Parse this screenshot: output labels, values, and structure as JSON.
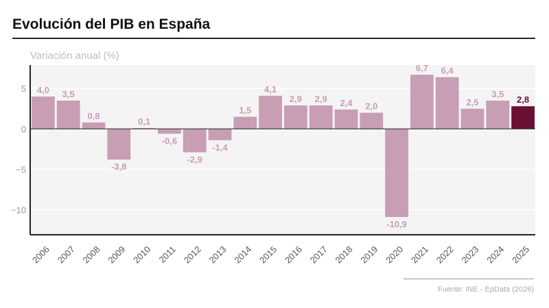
{
  "title": "Evolución del PIB en España",
  "source": "Fuente: INE - EpData (2026)",
  "colors": {
    "bar": "#c89eb4",
    "highlight": "#6b0f35",
    "label": "#c89eb4",
    "background": "#f4f4f4"
  },
  "chart_data": {
    "type": "bar",
    "title": "Evolución del PIB en España",
    "ylabel": "Variación anual (%)",
    "xlabel": "",
    "categories": [
      "2006",
      "2007",
      "2008",
      "2009",
      "2010",
      "2011",
      "2012",
      "2013",
      "2014",
      "2015",
      "2016",
      "2017",
      "2018",
      "2019",
      "2020",
      "2021",
      "2022",
      "2023",
      "2024",
      "2025"
    ],
    "values": [
      4.0,
      3.5,
      0.8,
      -3.8,
      0.1,
      -0.6,
      -2.9,
      -1.4,
      1.5,
      4.1,
      2.9,
      2.9,
      2.4,
      2.0,
      -10.9,
      6.7,
      6.4,
      2.5,
      3.5,
      2.8
    ],
    "data_labels": [
      "4,0",
      "3,5",
      "0,8",
      "-3,8",
      "0,1",
      "-0,6",
      "-2,9",
      "-1,4",
      "1,5",
      "4,1",
      "2,9",
      "2,9",
      "2,4",
      "2,0",
      "-10,9",
      "6,7",
      "6,4",
      "2,5",
      "3,5",
      "2,8"
    ],
    "highlighted": "2025",
    "yticks": [
      5,
      0,
      -5,
      -10
    ],
    "ytick_labels": [
      "5",
      "0",
      "−5",
      "−10"
    ],
    "ylim": [
      -13.1,
      7.9
    ],
    "grid": true
  }
}
